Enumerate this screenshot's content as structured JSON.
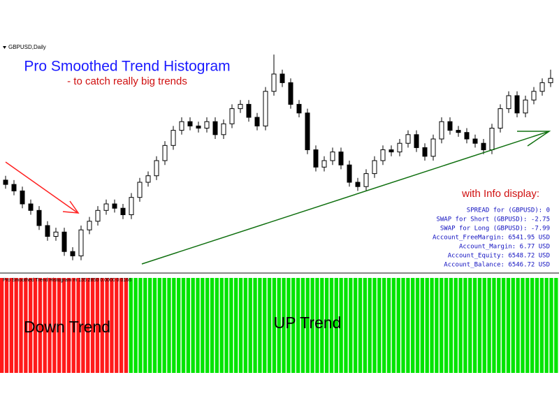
{
  "window": {
    "symbol_label": "GBPUSD,Daily",
    "indicator_label": "Pro Smoothed Trend Histogram m 135 2850 0.0000 0.0166"
  },
  "annotations": {
    "title": "Pro Smoothed Trend Histogram",
    "subtitle": "- to catch really big trends",
    "info_title": "with Info display:",
    "down_label": "Down Trend",
    "up_label": "UP Trend"
  },
  "info": [
    "SPREAD for (GBPUSD): 0",
    "SWAP for Short (GBPUSD): -2.75",
    "SWAP for Long (GBPUSD): -7.99",
    "Account_FreeMargin: 6541.95 USD",
    "Account_Margin: 6.77 USD",
    "Account_Equity: 6548.72 USD",
    "Account_Balance: 6546.72 USD"
  ],
  "chart_data": {
    "type": "candlestick",
    "ylim": [
      0,
      100
    ],
    "up_color": "#ffffff",
    "down_color": "#000000",
    "open": [
      41,
      39,
      36,
      30,
      27,
      20,
      15,
      17,
      8,
      6,
      18,
      22,
      27,
      30,
      28,
      25,
      33,
      40,
      43,
      50,
      57,
      64,
      68,
      66,
      65,
      68,
      62,
      67,
      74,
      76,
      70,
      66,
      82,
      90,
      86,
      76,
      72,
      55,
      47,
      50,
      54,
      48,
      40,
      38,
      44,
      50,
      55,
      54,
      58,
      62,
      56,
      52,
      60,
      68,
      64,
      63,
      60,
      58,
      55,
      65,
      74,
      80,
      72,
      78,
      82,
      86
    ],
    "high": [
      43,
      41,
      38,
      32,
      29,
      22,
      19,
      19,
      10,
      20,
      24,
      29,
      32,
      32,
      30,
      35,
      42,
      45,
      52,
      59,
      66,
      70,
      70,
      68,
      70,
      70,
      69,
      76,
      78,
      78,
      72,
      84,
      99,
      92,
      88,
      78,
      74,
      57,
      52,
      56,
      56,
      50,
      42,
      46,
      52,
      57,
      57,
      60,
      64,
      64,
      58,
      62,
      70,
      70,
      66,
      65,
      62,
      60,
      67,
      76,
      82,
      82,
      80,
      84,
      88,
      92
    ],
    "low": [
      37,
      34,
      28,
      25,
      18,
      13,
      13,
      6,
      4,
      4,
      16,
      20,
      25,
      26,
      23,
      23,
      31,
      38,
      41,
      48,
      55,
      62,
      64,
      63,
      63,
      60,
      60,
      65,
      72,
      68,
      64,
      64,
      80,
      84,
      74,
      70,
      53,
      45,
      45,
      48,
      46,
      38,
      36,
      36,
      42,
      48,
      52,
      52,
      56,
      54,
      50,
      50,
      58,
      62,
      61,
      58,
      56,
      53,
      53,
      63,
      72,
      70,
      70,
      76,
      80,
      84
    ],
    "close": [
      39,
      36,
      30,
      27,
      20,
      15,
      17,
      8,
      6,
      18,
      22,
      27,
      30,
      28,
      25,
      33,
      40,
      43,
      50,
      57,
      64,
      68,
      66,
      65,
      68,
      62,
      67,
      74,
      76,
      70,
      66,
      82,
      90,
      86,
      76,
      72,
      55,
      47,
      50,
      54,
      48,
      40,
      38,
      44,
      50,
      55,
      54,
      58,
      62,
      56,
      52,
      60,
      68,
      64,
      63,
      60,
      58,
      55,
      65,
      74,
      80,
      72,
      78,
      82,
      86,
      88
    ]
  },
  "histogram": {
    "down_color": "#ff1a1a",
    "up_color": "#00e400",
    "values": [
      -1,
      -1,
      -1,
      -1,
      -1,
      -1,
      -1,
      -1,
      -1,
      -1,
      -1,
      -1,
      -1,
      -1,
      -1,
      -1,
      -1,
      -1,
      -1,
      -1,
      -1,
      -1,
      -1,
      -1,
      -1,
      -1,
      -1,
      1,
      1,
      1,
      1,
      1,
      1,
      1,
      1,
      1,
      1,
      1,
      1,
      1,
      1,
      1,
      1,
      1,
      1,
      1,
      1,
      1,
      1,
      1,
      1,
      1,
      1,
      1,
      1,
      1,
      1,
      1,
      1,
      1,
      1,
      1,
      1,
      1,
      1,
      1,
      1,
      1,
      1,
      1,
      1,
      1,
      1,
      1,
      1,
      1,
      1,
      1,
      1,
      1,
      1,
      1,
      1,
      1,
      1,
      1,
      1,
      1,
      1,
      1,
      1,
      1,
      1,
      1,
      1,
      1,
      1,
      1,
      1,
      1,
      1,
      1,
      1,
      1,
      1,
      1,
      1,
      1,
      1,
      1,
      1,
      1,
      1,
      1,
      1,
      1,
      1
    ]
  }
}
